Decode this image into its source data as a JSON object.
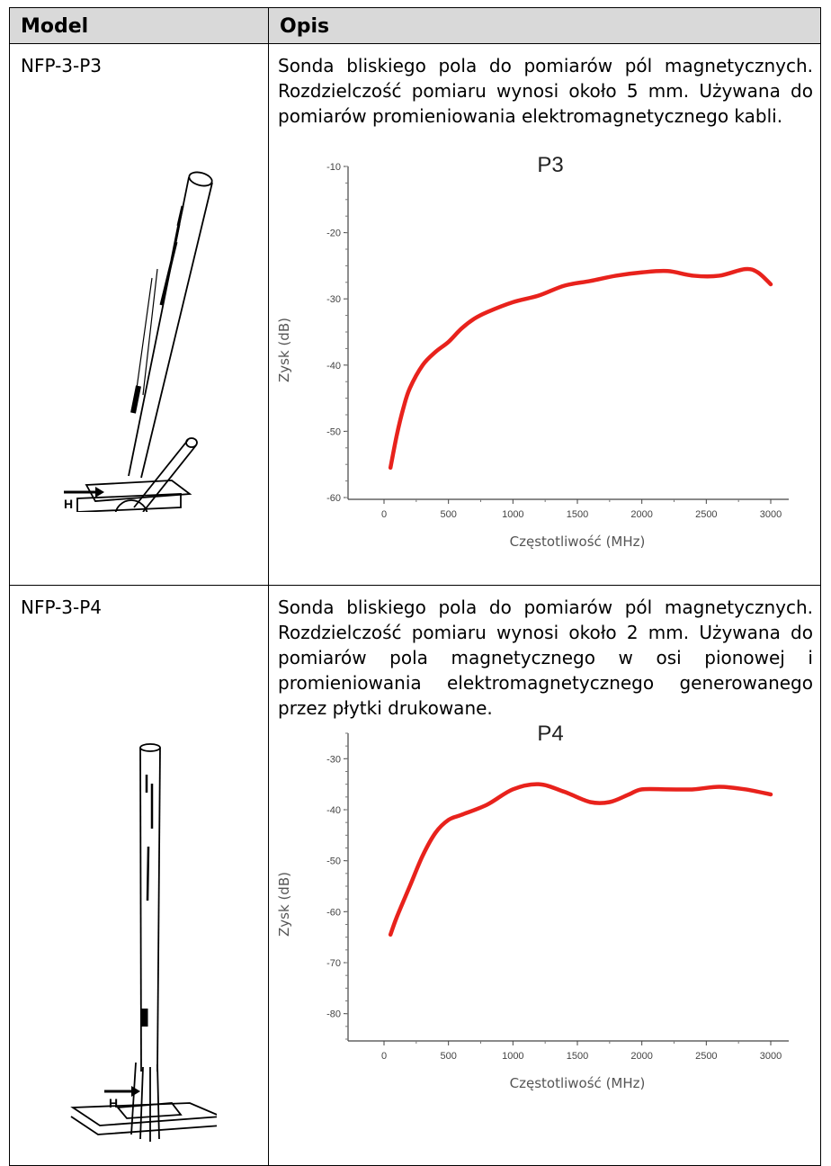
{
  "table": {
    "headers": [
      "Model",
      "Opis"
    ],
    "rows": [
      {
        "model": "NFP-3-P3",
        "description": "Sonda bliskiego pola do pomiarów pól magnetycznych. Rozdzielczość pomiaru wynosi około 5 mm. Używana do pomiarów promieniowania elektromagnetycznego kabli.",
        "probe_label": "H",
        "probe_label_2": "H"
      },
      {
        "model": "NFP-3-P4",
        "description": "Sonda bliskiego pola do pomiarów pól magnetycznych. Rozdzielczość pomiaru wynosi około 2 mm. Używana do pomiarów pola magnetycznego w osi pionowej i promieniowania elektromagnetycznego generowanego przez płytki drukowane.",
        "probe_label": "H"
      }
    ]
  },
  "chart_data": [
    {
      "type": "line",
      "title": "P3",
      "xlabel": "Częstotliwość (MHz)",
      "ylabel": "Zysk (dB)",
      "xlim": [
        0,
        3000
      ],
      "ylim": [
        -60,
        -10
      ],
      "xticks": [
        "0",
        "500",
        "1000",
        "1500",
        "2000",
        "2500",
        "3000"
      ],
      "yticks": [
        "-10",
        "-20",
        "-30",
        "-40",
        "-50",
        "-60"
      ],
      "line_color": "#e8221c",
      "x": [
        50,
        100,
        150,
        200,
        300,
        400,
        500,
        600,
        700,
        800,
        1000,
        1200,
        1400,
        1600,
        1800,
        2000,
        2200,
        2400,
        2600,
        2800,
        2900,
        3000
      ],
      "y": [
        -55.5,
        -50.5,
        -46.5,
        -43.5,
        -40,
        -38,
        -36.5,
        -34.5,
        -33,
        -32,
        -30.5,
        -29.5,
        -28,
        -27.3,
        -26.5,
        -26,
        -25.8,
        -26.5,
        -26.5,
        -25.5,
        -26,
        -27.8
      ]
    },
    {
      "type": "line",
      "title": "P4",
      "xlabel": "Częstotliwość (MHz)",
      "ylabel": "Zysk (dB)",
      "xlim": [
        0,
        3000
      ],
      "ylim": [
        -85,
        -25
      ],
      "xticks": [
        "0",
        "500",
        "1000",
        "1500",
        "2000",
        "2500",
        "3000"
      ],
      "yticks": [
        "-30",
        "-40",
        "-50",
        "-60",
        "-70",
        "-80"
      ],
      "line_color": "#e8221c",
      "x": [
        50,
        100,
        200,
        300,
        400,
        500,
        600,
        800,
        1000,
        1200,
        1400,
        1600,
        1750,
        1900,
        2000,
        2200,
        2400,
        2600,
        2800,
        3000
      ],
      "y": [
        -64.5,
        -61,
        -55,
        -49,
        -44.5,
        -42,
        -41,
        -39,
        -36,
        -35,
        -36.5,
        -38.5,
        -38.5,
        -37,
        -36,
        -36,
        -36,
        -35.5,
        -36,
        -37
      ]
    }
  ]
}
